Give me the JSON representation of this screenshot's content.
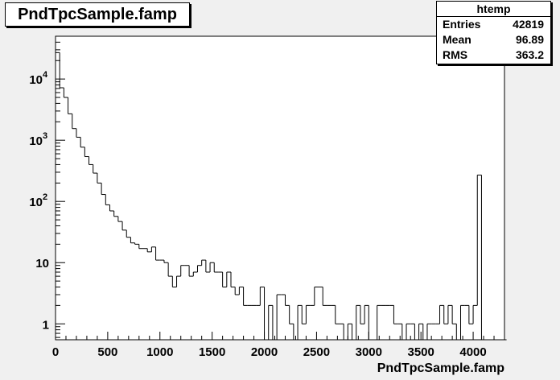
{
  "title": "PndTpcSample.famp",
  "stats": {
    "name": "htemp",
    "rows": [
      {
        "label": "Entries",
        "value": "42819"
      },
      {
        "label": "Mean",
        "value": "96.89"
      },
      {
        "label": "RMS",
        "value": "363.2"
      }
    ]
  },
  "chart_data": {
    "type": "histogram",
    "title": "PndTpcSample.famp",
    "xlabel": "PndTpcSample.famp",
    "ylabel": "",
    "xlim": [
      0,
      4300
    ],
    "ylim": [
      0.55,
      50000
    ],
    "log_y": true,
    "grid": false,
    "bin_width": 40,
    "x_ticks": [
      0,
      500,
      1000,
      1500,
      2000,
      2500,
      3000,
      3500,
      4000
    ],
    "y_ticks": [
      {
        "value": 1,
        "label": "1"
      },
      {
        "value": 10,
        "label": "10"
      },
      {
        "value": 100,
        "label": "10",
        "exp": "2"
      },
      {
        "value": 1000,
        "label": "10",
        "exp": "3"
      },
      {
        "value": 10000,
        "label": "10",
        "exp": "4"
      }
    ],
    "counts": [
      27000,
      7200,
      5000,
      2700,
      1550,
      1120,
      770,
      540,
      400,
      290,
      200,
      130,
      88,
      70,
      57,
      47,
      34,
      26,
      21,
      20,
      17,
      17,
      15,
      18,
      11,
      11,
      10,
      6,
      4,
      6,
      9,
      9,
      6,
      7,
      9,
      11,
      7,
      10,
      7,
      7,
      4,
      7,
      4,
      3,
      4,
      2,
      2,
      2,
      2,
      4,
      0,
      2,
      0,
      3,
      3,
      2,
      1,
      0,
      2,
      1,
      2,
      2,
      4,
      4,
      2,
      2,
      2,
      1,
      1,
      0,
      1,
      0,
      2,
      1,
      2,
      0,
      0,
      2,
      2,
      2,
      2,
      1,
      1,
      0,
      1,
      1,
      0,
      1,
      0,
      1,
      1,
      1,
      2,
      1,
      2,
      1,
      0,
      2,
      2,
      1,
      2,
      270,
      0,
      0,
      0,
      0,
      0,
      0
    ],
    "bar_color": "#000000"
  }
}
